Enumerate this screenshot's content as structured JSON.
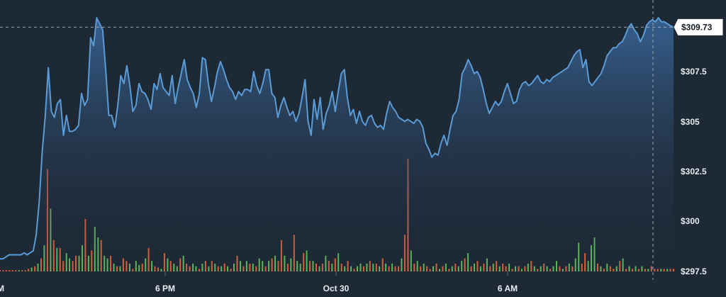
{
  "chart_data": {
    "type": "area",
    "ylim": [
      297.5,
      310.9
    ],
    "y_ticks": [
      "$307.5",
      "$305",
      "$302.5",
      "$300",
      "$297.5"
    ],
    "y_tick_values": [
      307.5,
      305,
      302.5,
      300,
      297.5
    ],
    "x_ticks": [
      "M",
      "6 PM",
      "Oct 30",
      "6 AM"
    ],
    "current_price_label": "$309.73",
    "current_price": 309.73,
    "colors": {
      "background": "#1e2936",
      "line": "#5b9bd5",
      "volume_up": "#5cb85c",
      "volume_down": "#d9613c",
      "crosshair": "#9aa5b1"
    },
    "price_series": [
      298.1,
      298.1,
      298.2,
      298.3,
      298.3,
      298.3,
      298.3,
      298.3,
      298.4,
      298.3,
      298.4,
      298.5,
      299.3,
      301.0,
      303.5,
      305.3,
      307.7,
      305.5,
      305.2,
      305.9,
      306.1,
      304.3,
      305.3,
      304.5,
      304.5,
      304.6,
      304.8,
      306.4,
      305.8,
      306.1,
      309.2,
      308.8,
      310.2,
      309.9,
      309.6,
      307.6,
      305.3,
      305.3,
      304.7,
      305.8,
      307.3,
      306.9,
      307.8,
      306.8,
      305.5,
      305.8,
      306.9,
      306.5,
      306.4,
      306.1,
      305.6,
      306.9,
      306.6,
      307.4,
      306.7,
      306.5,
      306.3,
      307.3,
      305.9,
      306.7,
      307.4,
      308.1,
      307.1,
      306.7,
      306.4,
      305.7,
      306.4,
      308.2,
      308.1,
      306.9,
      306.0,
      306.7,
      307.5,
      308.0,
      307.6,
      307.1,
      306.7,
      306.5,
      306.1,
      306.5,
      306.3,
      306.6,
      306.6,
      306.5,
      307.5,
      306.8,
      306.4,
      306.9,
      307.6,
      307.6,
      306.4,
      306.2,
      305.2,
      305.8,
      306.2,
      305.7,
      305.3,
      305.5,
      305.0,
      305.4,
      306.2,
      307.1,
      305.0,
      304.3,
      306.1,
      305.1,
      306.2,
      304.6,
      305.4,
      305.8,
      306.5,
      305.5,
      306.5,
      307.4,
      307.6,
      306.2,
      305.3,
      305.6,
      304.9,
      305.5,
      305.0,
      304.8,
      305.2,
      305.3,
      304.9,
      304.7,
      304.8,
      304.6,
      305.4,
      306.0,
      305.7,
      305.5,
      305.2,
      305.1,
      305.0,
      305.1,
      305.0,
      304.9,
      305.1,
      305.0,
      304.7,
      303.9,
      303.6,
      303.2,
      303.4,
      303.3,
      303.9,
      304.3,
      303.8,
      304.6,
      305.3,
      305.5,
      306.1,
      307.4,
      307.7,
      308.1,
      307.8,
      307.4,
      307.5,
      307.2,
      306.6,
      305.9,
      305.4,
      305.7,
      306.0,
      305.8,
      306.0,
      306.5,
      306.9,
      306.4,
      305.9,
      306.0,
      306.6,
      306.9,
      307.0,
      306.8,
      306.9,
      307.1,
      307.3,
      307.0,
      306.9,
      307.1,
      307.0,
      307.2,
      307.3,
      307.4,
      307.5,
      307.6,
      307.7,
      308.0,
      308.3,
      308.5,
      308.6,
      307.7,
      308.1,
      307.0,
      306.8,
      307.0,
      307.2,
      307.4,
      307.8,
      308.3,
      308.5,
      308.7,
      308.7,
      308.9,
      309.0,
      309.3,
      309.7,
      309.9,
      309.6,
      309.4,
      309.0,
      309.3,
      309.8,
      310.0,
      310.1,
      310.0,
      310.2,
      310.0,
      310.0,
      309.9,
      309.8,
      309.73
    ],
    "volume_series": [
      [
        1,
        0
      ],
      [
        1,
        0
      ],
      [
        1,
        0
      ],
      [
        1,
        0
      ],
      [
        1,
        0
      ],
      [
        1,
        0
      ],
      [
        1,
        1
      ],
      [
        1,
        0
      ],
      [
        1,
        0
      ],
      [
        2,
        0
      ],
      [
        3,
        1
      ],
      [
        4,
        0
      ],
      [
        6,
        1
      ],
      [
        10,
        0
      ],
      [
        20,
        1
      ],
      [
        78,
        0
      ],
      [
        48,
        1
      ],
      [
        24,
        0
      ],
      [
        18,
        1
      ],
      [
        18,
        0
      ],
      [
        8,
        0
      ],
      [
        14,
        1
      ],
      [
        10,
        1
      ],
      [
        8,
        0
      ],
      [
        12,
        0
      ],
      [
        12,
        1
      ],
      [
        20,
        1
      ],
      [
        40,
        0
      ],
      [
        12,
        1
      ],
      [
        16,
        0
      ],
      [
        34,
        1
      ],
      [
        26,
        1
      ],
      [
        24,
        0
      ],
      [
        12,
        1
      ],
      [
        10,
        1
      ],
      [
        12,
        0
      ],
      [
        6,
        1
      ],
      [
        4,
        0
      ],
      [
        4,
        1
      ],
      [
        10,
        0
      ],
      [
        8,
        0
      ],
      [
        6,
        1
      ],
      [
        2,
        0
      ],
      [
        8,
        1
      ],
      [
        5,
        1
      ],
      [
        6,
        0
      ],
      [
        10,
        1
      ],
      [
        18,
        0
      ],
      [
        8,
        1
      ],
      [
        4,
        0
      ],
      [
        3,
        0
      ],
      [
        2,
        1
      ],
      [
        14,
        0
      ],
      [
        10,
        1
      ],
      [
        8,
        0
      ],
      [
        6,
        1
      ],
      [
        4,
        1
      ],
      [
        10,
        0
      ],
      [
        12,
        1
      ],
      [
        6,
        0
      ],
      [
        4,
        0
      ],
      [
        6,
        1
      ],
      [
        4,
        1
      ],
      [
        2,
        0
      ],
      [
        6,
        1
      ],
      [
        8,
        0
      ],
      [
        4,
        1
      ],
      [
        8,
        0
      ],
      [
        6,
        1
      ],
      [
        4,
        0
      ],
      [
        4,
        1
      ],
      [
        6,
        0
      ],
      [
        4,
        1
      ],
      [
        2,
        0
      ],
      [
        6,
        1
      ],
      [
        12,
        0
      ],
      [
        8,
        1
      ],
      [
        4,
        0
      ],
      [
        8,
        1
      ],
      [
        6,
        0
      ],
      [
        6,
        1
      ],
      [
        4,
        0
      ],
      [
        10,
        1
      ],
      [
        8,
        1
      ],
      [
        4,
        0
      ],
      [
        8,
        1
      ],
      [
        10,
        0
      ],
      [
        12,
        1
      ],
      [
        8,
        0
      ],
      [
        24,
        0
      ],
      [
        12,
        1
      ],
      [
        6,
        0
      ],
      [
        10,
        1
      ],
      [
        28,
        0
      ],
      [
        8,
        1
      ],
      [
        6,
        1
      ],
      [
        14,
        0
      ],
      [
        16,
        1
      ],
      [
        8,
        0
      ],
      [
        8,
        1
      ],
      [
        6,
        0
      ],
      [
        4,
        1
      ],
      [
        6,
        0
      ],
      [
        12,
        1
      ],
      [
        8,
        0
      ],
      [
        6,
        1
      ],
      [
        10,
        0
      ],
      [
        14,
        1
      ],
      [
        6,
        0
      ],
      [
        4,
        1
      ],
      [
        8,
        0
      ],
      [
        4,
        1
      ],
      [
        2,
        0
      ],
      [
        4,
        1
      ],
      [
        6,
        1
      ],
      [
        4,
        0
      ],
      [
        6,
        1
      ],
      [
        8,
        0
      ],
      [
        6,
        1
      ],
      [
        6,
        0
      ],
      [
        4,
        1
      ],
      [
        10,
        0
      ],
      [
        6,
        1
      ],
      [
        4,
        0
      ],
      [
        6,
        1
      ],
      [
        4,
        0
      ],
      [
        4,
        0
      ],
      [
        10,
        1
      ],
      [
        28,
        0
      ],
      [
        86,
        0
      ],
      [
        16,
        1
      ],
      [
        6,
        0
      ],
      [
        8,
        1
      ],
      [
        4,
        0
      ],
      [
        6,
        1
      ],
      [
        4,
        0
      ],
      [
        2,
        0
      ],
      [
        4,
        1
      ],
      [
        6,
        0
      ],
      [
        2,
        1
      ],
      [
        4,
        0
      ],
      [
        6,
        1
      ],
      [
        2,
        0
      ],
      [
        4,
        1
      ],
      [
        6,
        0
      ],
      [
        4,
        1
      ],
      [
        8,
        1
      ],
      [
        10,
        0
      ],
      [
        14,
        1
      ],
      [
        4,
        0
      ],
      [
        6,
        1
      ],
      [
        8,
        0
      ],
      [
        4,
        1
      ],
      [
        6,
        0
      ],
      [
        10,
        1
      ],
      [
        4,
        0
      ],
      [
        6,
        1
      ],
      [
        8,
        0
      ],
      [
        4,
        1
      ],
      [
        6,
        0
      ],
      [
        4,
        0
      ],
      [
        6,
        1
      ],
      [
        2,
        0
      ],
      [
        4,
        1
      ],
      [
        4,
        0
      ],
      [
        2,
        1
      ],
      [
        4,
        0
      ],
      [
        6,
        1
      ],
      [
        8,
        0
      ],
      [
        4,
        1
      ],
      [
        2,
        0
      ],
      [
        4,
        1
      ],
      [
        6,
        0
      ],
      [
        4,
        1
      ],
      [
        2,
        0
      ],
      [
        4,
        1
      ],
      [
        8,
        1
      ],
      [
        4,
        0
      ],
      [
        2,
        1
      ],
      [
        4,
        0
      ],
      [
        6,
        1
      ],
      [
        4,
        0
      ],
      [
        10,
        1
      ],
      [
        22,
        1
      ],
      [
        6,
        0
      ],
      [
        14,
        0
      ],
      [
        8,
        1
      ],
      [
        20,
        1
      ],
      [
        26,
        1
      ],
      [
        6,
        0
      ],
      [
        4,
        1
      ],
      [
        2,
        0
      ],
      [
        6,
        1
      ],
      [
        4,
        0
      ],
      [
        2,
        0
      ],
      [
        4,
        1
      ],
      [
        8,
        0
      ],
      [
        10,
        1
      ],
      [
        2,
        0
      ],
      [
        4,
        1
      ],
      [
        2,
        0
      ],
      [
        4,
        1
      ],
      [
        2,
        0
      ],
      [
        4,
        1
      ],
      [
        2,
        0
      ],
      [
        2,
        1
      ],
      [
        4,
        0
      ],
      [
        2,
        0
      ],
      [
        2,
        0
      ],
      [
        2,
        1
      ],
      [
        2,
        0
      ],
      [
        2,
        1
      ],
      [
        2,
        0
      ],
      [
        2,
        0
      ]
    ]
  }
}
